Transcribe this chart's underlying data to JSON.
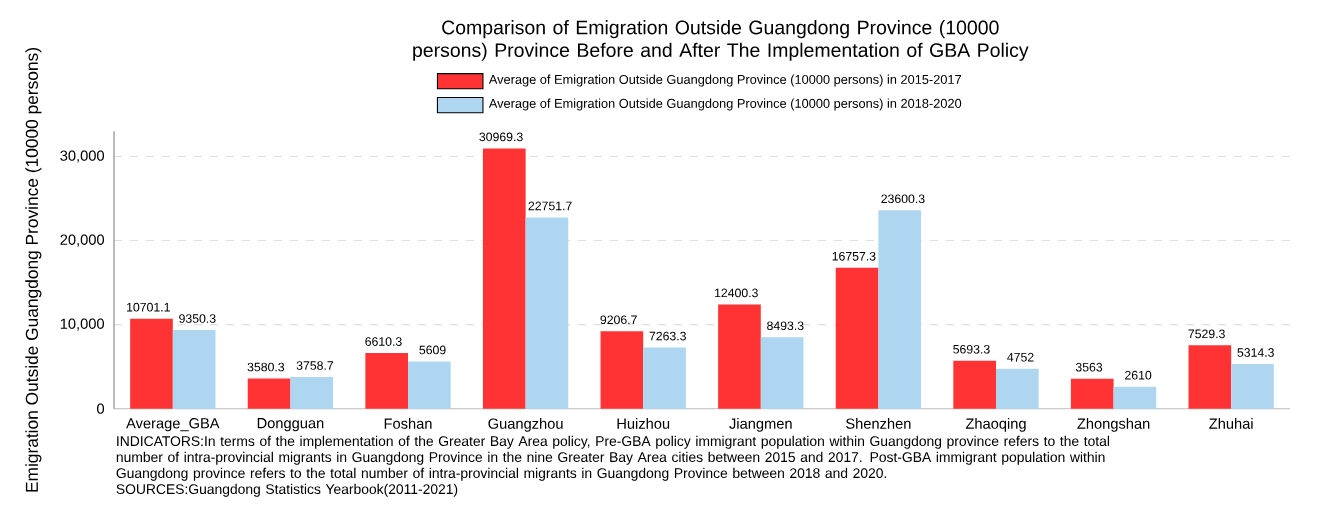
{
  "chart_data": {
    "type": "bar",
    "title": "Comparison of Emigration Outside Guangdong Province (10000 persons) Province Before and After The Implementation of GBA Policy",
    "ylabel": "Emigration Outside Guangdong Province (10000 persons)",
    "categories": [
      "Average_GBA",
      "Dongguan",
      "Foshan",
      "Guangzhou",
      "Huizhou",
      "Jiangmen",
      "Shenzhen",
      "Zhaoqing",
      "Zhongshan",
      "Zhuhai"
    ],
    "series": [
      {
        "name": "Average of Emigration Outside Guangdong Province (10000 persons) in 2015-2017",
        "color": "#ff3333",
        "values": [
          10701.1,
          3580.3,
          6610.3,
          30969.3,
          9206.7,
          12400.3,
          16757.3,
          5693.3,
          3563,
          7529.3
        ]
      },
      {
        "name": "Average of Emigration Outside Guangdong Province (10000 persons) in 2018-2020",
        "color": "#aed6f1",
        "values": [
          9350.3,
          3758.7,
          5609,
          22751.7,
          7263.3,
          8493.3,
          23600.3,
          4752,
          2610,
          5314.3
        ]
      }
    ],
    "ylim": [
      0,
      33000
    ],
    "yticks": [
      0,
      {
        "value": 10000,
        "label": "10,000"
      },
      {
        "value": 20000,
        "label": "20,000"
      },
      {
        "value": 30000,
        "label": "30,000"
      }
    ],
    "grid": "y",
    "legend": "top",
    "data_labels": true,
    "annotations": [
      "INDICATORS:In terms of the implementation of the Greater Bay Area policy, Pre-GBA policy immigrant population within Guangdong province refers to the total number of intra-provincial migrants in Guangdong Province in the nine Greater Bay Area cities between 2015 and 2017. Post-GBA immigrant population within Guangdong province refers to the total number of intra-provincial migrants in Guangdong Province between 2018 and 2020.",
      "SOURCES:Guangdong Statistics Yearbook(2011-2021)"
    ]
  }
}
